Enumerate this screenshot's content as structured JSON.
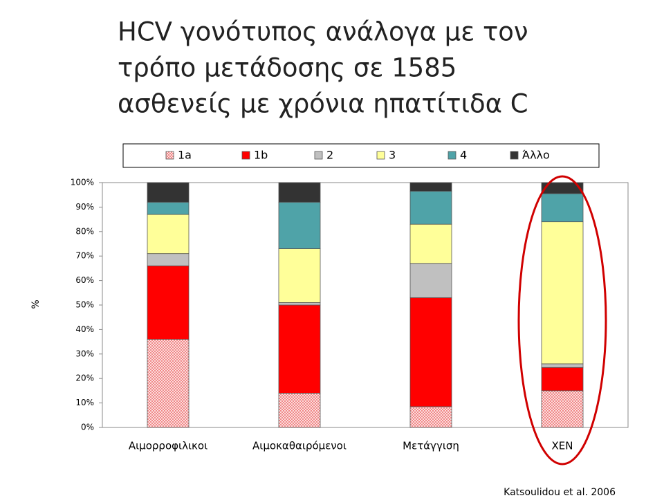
{
  "chart_data": {
    "type": "stacked-bar",
    "title": [
      "HCV γονότυπος ανάλογα με τον",
      "τρόπο μετάδοσης σε 1585",
      "ασθενείς με χρόνια ηπατίτιδα C"
    ],
    "y_label": "%",
    "source": "Katsoulidou et al. 2006",
    "categories": [
      "Αιμορροφιλικοι",
      "Αιμοκαθαιρόμενοι",
      "Μετάγγιση",
      "ΧΕΝ"
    ],
    "series": [
      {
        "name": "1a",
        "color": "#f08080",
        "pattern": "hatch",
        "values": [
          36,
          14,
          8.5,
          15
        ]
      },
      {
        "name": "1b",
        "color": "#ff0000",
        "values": [
          30,
          36,
          44.5,
          9.5
        ]
      },
      {
        "name": "2",
        "color": "#c0c0c0",
        "values": [
          5,
          1,
          14,
          1.5
        ]
      },
      {
        "name": "3",
        "color": "#ffff99",
        "values": [
          16,
          22,
          16,
          58
        ]
      },
      {
        "name": "4",
        "color": "#4fa3a8",
        "values": [
          5,
          19,
          13.5,
          11.5
        ]
      },
      {
        "name": "Άλλο",
        "color": "#333333",
        "values": [
          8,
          8,
          3.5,
          4.5
        ]
      }
    ],
    "ylim": [
      0,
      100
    ],
    "yticks": [
      {
        "value": 0,
        "label": "0%"
      },
      {
        "value": 10,
        "label": "10%"
      },
      {
        "value": 20,
        "label": "20%"
      },
      {
        "value": 30,
        "label": "30%"
      },
      {
        "value": 40,
        "label": "40%"
      },
      {
        "value": 50,
        "label": "50%"
      },
      {
        "value": 60,
        "label": "60%"
      },
      {
        "value": 70,
        "label": "70%"
      },
      {
        "value": 80,
        "label": "80%"
      },
      {
        "value": 90,
        "label": "90%"
      },
      {
        "value": 100,
        "label": "100%"
      }
    ],
    "highlight": {
      "category": 3,
      "color": "#d00000"
    }
  }
}
